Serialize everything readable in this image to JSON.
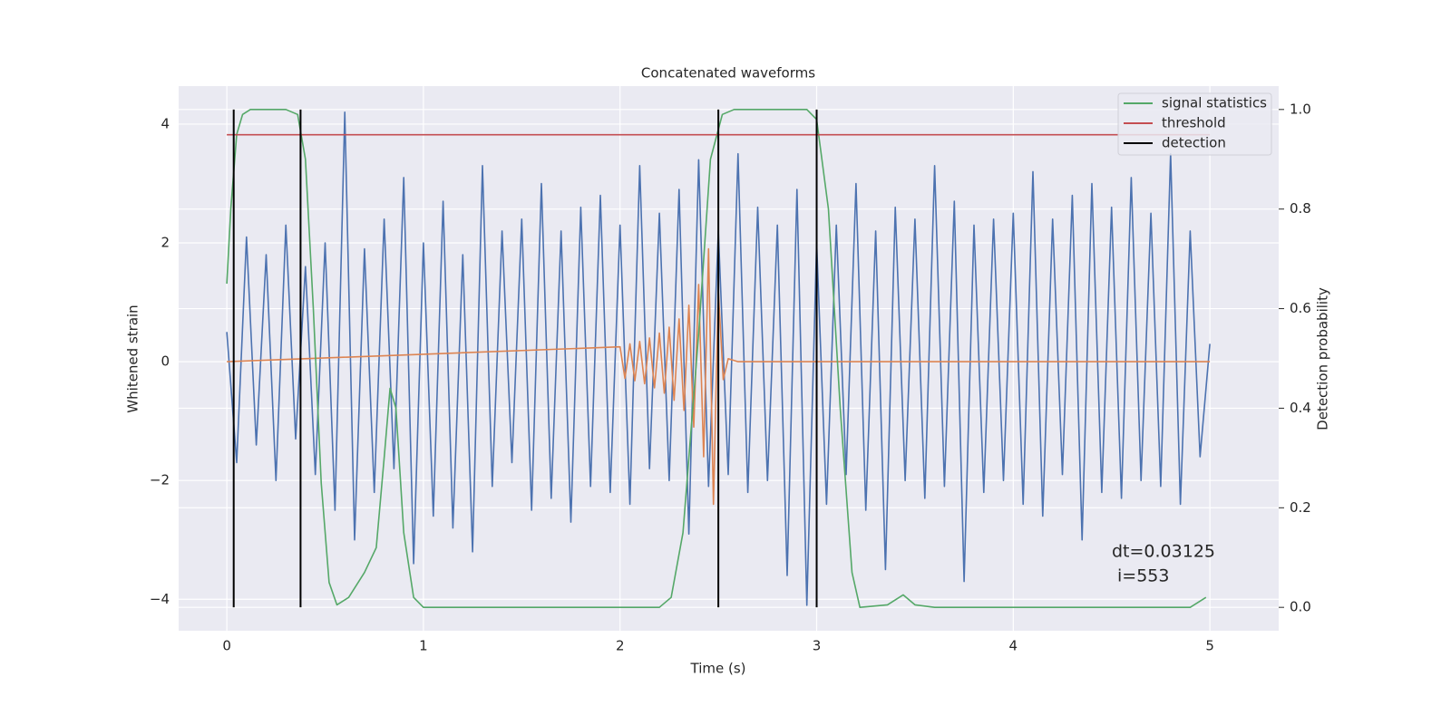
{
  "chart_data": {
    "type": "line",
    "title": "Concatenated waveforms",
    "x_label": "Time (s)",
    "y_label": "Whitened strain",
    "y2_label": "Detection probability",
    "annotation": [
      "dt=0.03125",
      "i=553"
    ],
    "xlim": [
      -0.245,
      5.35
    ],
    "ylim": [
      -4.53,
      4.64
    ],
    "y2lim": [
      -0.047,
      1.047
    ],
    "xticks": [
      0,
      1,
      2,
      3,
      4,
      5
    ],
    "yticks": [
      {
        "value": -4,
        "label": "−4"
      },
      {
        "value": -2,
        "label": "−2"
      },
      0,
      2,
      4
    ],
    "y2ticks": [
      {
        "value": 0,
        "label": "0.0"
      },
      {
        "value": 0.2,
        "label": "0.2"
      },
      {
        "value": 0.4,
        "label": "0.4"
      },
      {
        "value": 0.6,
        "label": "0.6"
      },
      {
        "value": 0.8,
        "label": "0.8"
      },
      {
        "value": 1,
        "label": "1.0"
      }
    ],
    "grid": true,
    "legend": "upper right",
    "series": [
      {
        "color": "#4c72b0",
        "x": [
          0,
          0.05,
          0.1,
          0.15,
          0.2,
          0.25,
          0.3,
          0.35,
          0.4,
          0.45,
          0.5,
          0.55,
          0.6,
          0.65,
          0.7,
          0.75,
          0.8,
          0.85,
          0.9,
          0.95,
          1,
          1.05,
          1.1,
          1.15,
          1.2,
          1.25,
          1.3,
          1.35,
          1.4,
          1.45,
          1.5,
          1.55,
          1.6,
          1.65,
          1.7,
          1.75,
          1.8,
          1.85,
          1.9,
          1.95,
          2,
          2.05,
          2.1,
          2.15,
          2.2,
          2.25,
          2.3,
          2.35,
          2.4,
          2.45,
          2.5,
          2.55,
          2.6,
          2.65,
          2.7,
          2.75,
          2.8,
          2.85,
          2.9,
          2.95,
          3,
          3.05,
          3.1,
          3.15,
          3.2,
          3.25,
          3.3,
          3.35,
          3.4,
          3.45,
          3.5,
          3.55,
          3.6,
          3.65,
          3.7,
          3.75,
          3.8,
          3.85,
          3.9,
          3.95,
          4,
          4.05,
          4.1,
          4.15,
          4.2,
          4.25,
          4.3,
          4.35,
          4.4,
          4.45,
          4.5,
          4.55,
          4.6,
          4.65,
          4.7,
          4.75,
          4.8,
          4.85,
          4.9,
          4.95,
          5
        ],
        "values": [
          0.5,
          -1.7,
          2.1,
          -1.4,
          1.8,
          -2.0,
          2.3,
          -1.3,
          1.6,
          -1.9,
          2.0,
          -2.5,
          4.2,
          -3.0,
          1.9,
          -2.2,
          2.4,
          -1.8,
          3.1,
          -3.4,
          2.0,
          -2.6,
          2.7,
          -2.8,
          1.8,
          -3.2,
          3.3,
          -2.1,
          2.2,
          -1.7,
          2.4,
          -2.5,
          3.0,
          -2.3,
          2.2,
          -2.7,
          2.6,
          -2.1,
          2.8,
          -2.2,
          2.3,
          -2.4,
          3.3,
          -1.8,
          2.5,
          -2.0,
          2.9,
          -2.9,
          3.4,
          -2.1,
          2.2,
          -1.9,
          3.5,
          -2.2,
          2.6,
          -2.0,
          2.3,
          -3.6,
          2.9,
          -4.1,
          2.0,
          -2.4,
          2.3,
          -1.9,
          3.0,
          -2.5,
          2.2,
          -3.5,
          2.6,
          -2.0,
          2.4,
          -2.3,
          3.3,
          -2.1,
          2.7,
          -3.7,
          2.3,
          -2.2,
          2.4,
          -2.0,
          2.5,
          -2.4,
          3.2,
          -2.6,
          2.4,
          -1.9,
          2.8,
          -3.0,
          3.0,
          -2.2,
          2.6,
          -2.3,
          3.1,
          -2.0,
          2.5,
          -2.1,
          3.5,
          -2.4,
          2.2,
          -1.6,
          0.3
        ]
      },
      {
        "color": "#dd8452",
        "x": [
          0,
          2.0,
          2.025,
          2.05,
          2.075,
          2.1,
          2.125,
          2.15,
          2.175,
          2.2,
          2.225,
          2.25,
          2.275,
          2.3,
          2.325,
          2.35,
          2.375,
          2.4,
          2.425,
          2.45,
          2.475,
          2.5,
          2.525,
          2.55,
          2.6,
          5.0
        ],
        "values": [
          0,
          0.25,
          -0.28,
          0.3,
          -0.32,
          0.34,
          -0.37,
          0.4,
          -0.44,
          0.48,
          -0.53,
          0.58,
          -0.65,
          0.72,
          -0.82,
          0.95,
          -1.1,
          1.3,
          -1.6,
          1.9,
          -2.4,
          1.2,
          -0.3,
          0.05,
          0,
          0
        ]
      },
      {
        "name": "signal statistics",
        "color": "#55a868",
        "axis": "y2",
        "x": [
          0,
          0.02,
          0.05,
          0.08,
          0.12,
          0.3,
          0.36,
          0.4,
          0.44,
          0.48,
          0.52,
          0.56,
          0.62,
          0.7,
          0.76,
          0.8,
          0.83,
          0.86,
          0.9,
          0.95,
          1.0,
          2.2,
          2.26,
          2.32,
          2.4,
          2.46,
          2.52,
          2.58,
          2.95,
          3.0,
          3.06,
          3.12,
          3.18,
          3.22,
          3.36,
          3.44,
          3.5,
          3.6,
          4.9,
          4.98
        ],
        "values": [
          0.65,
          0.8,
          0.95,
          0.99,
          1.0,
          1.0,
          0.99,
          0.9,
          0.6,
          0.25,
          0.05,
          0.005,
          0.02,
          0.07,
          0.12,
          0.3,
          0.44,
          0.4,
          0.15,
          0.02,
          0.0,
          0.0,
          0.02,
          0.15,
          0.55,
          0.9,
          0.99,
          1.0,
          1.0,
          0.98,
          0.8,
          0.4,
          0.07,
          0.0,
          0.005,
          0.025,
          0.005,
          0.0,
          0.0,
          0.02
        ]
      },
      {
        "name": "threshold",
        "color": "#c44e52",
        "x": [
          0,
          5
        ],
        "values": [
          3.82,
          3.82
        ]
      },
      {
        "name": "detection",
        "color": "#000000",
        "x": [
          0.035,
          0.375,
          2.5,
          3.0
        ]
      }
    ]
  }
}
